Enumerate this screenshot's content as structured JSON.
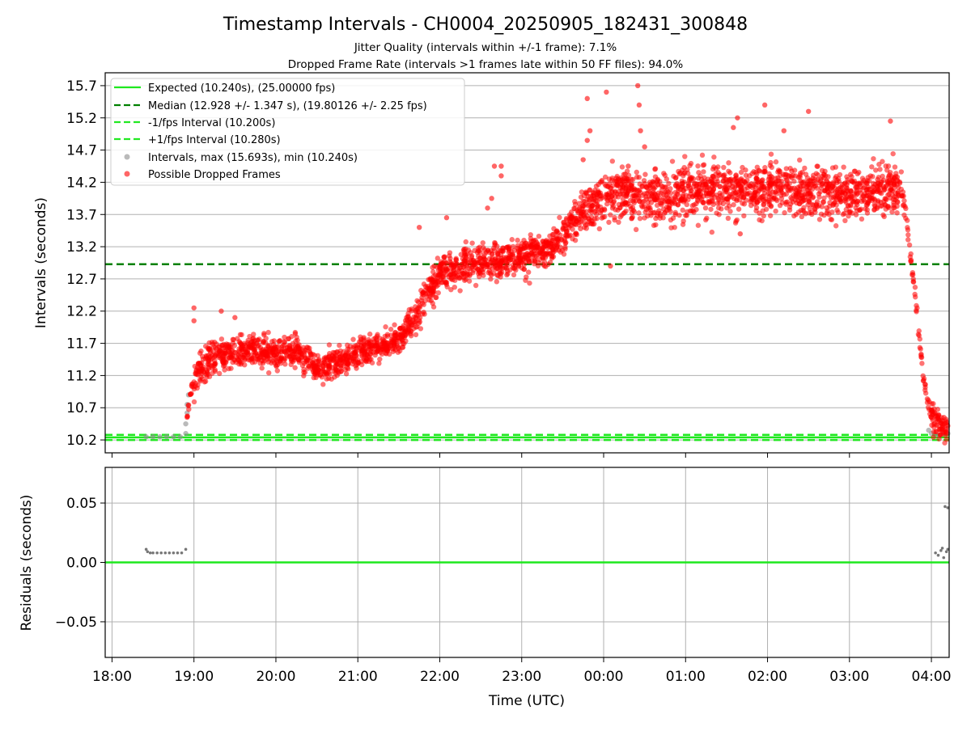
{
  "figure": {
    "title": "Timestamp Intervals - CH0004_20250905_182431_300848",
    "subtitle_jitter": "Jitter Quality (intervals within +/-1 frame): 7.1%",
    "subtitle_dropped": "Dropped Frame Rate (intervals >1 frames late within 50 FF files): 94.0%"
  },
  "colors": {
    "expected": "#1ee81e",
    "median": "#008000",
    "fps_band": "#22e822",
    "interval_gray": "#8c8c8c",
    "dropped_red": "#ff0000",
    "grid": "#b0b0b0"
  },
  "chart_data": [
    {
      "type": "scatter",
      "panel": "top",
      "title": "",
      "xlabel": "",
      "ylabel": "Intervals (seconds)",
      "xlim": [
        "17:55",
        "04:13"
      ],
      "ylim": [
        10.0,
        15.9
      ],
      "x_ticks": [
        "18:00",
        "19:00",
        "20:00",
        "21:00",
        "22:00",
        "23:00",
        "00:00",
        "01:00",
        "02:00",
        "03:00",
        "04:00"
      ],
      "y_ticks": [
        10.2,
        10.7,
        11.2,
        11.7,
        12.2,
        12.7,
        13.2,
        13.7,
        14.2,
        14.7,
        15.2,
        15.7
      ],
      "grid": true,
      "legend_position": "top-left",
      "reference_lines": [
        {
          "name": "Expected (10.240s), (25.00000 fps)",
          "y": 10.24,
          "style": "solid",
          "color": "#1ee81e"
        },
        {
          "name": "Median (12.928 +/- 1.347 s), (19.80126 +/- 2.25 fps)",
          "y": 12.928,
          "style": "dashed",
          "color": "#008000"
        },
        {
          "name": "-1/fps Interval (10.200s)",
          "y": 10.2,
          "style": "dashed",
          "color": "#22e822"
        },
        {
          "name": "+1/fps Interval (10.280s)",
          "y": 10.28,
          "style": "dashed",
          "color": "#22e822"
        }
      ],
      "series": [
        {
          "name": "Intervals, max (15.693s), min (10.240s)",
          "marker": "gray dot",
          "points": [
            [
              "18:25",
              10.25
            ],
            [
              "18:30",
              10.25
            ],
            [
              "18:35",
              10.25
            ],
            [
              "18:40",
              10.25
            ],
            [
              "18:45",
              10.25
            ],
            [
              "18:50",
              10.25
            ],
            [
              "18:54",
              10.3
            ],
            [
              "18:54",
              10.45
            ],
            [
              "18:55",
              10.62
            ],
            [
              "18:55",
              10.75
            ],
            [
              "18:56",
              10.9
            ],
            [
              "03:58",
              10.35
            ],
            [
              "04:00",
              10.3
            ],
            [
              "04:03",
              10.28
            ],
            [
              "04:06",
              10.27
            ],
            [
              "04:09",
              10.3
            ],
            [
              "04:12",
              10.3
            ]
          ]
        },
        {
          "name": "Possible Dropped Frames",
          "marker": "red dot",
          "trend": [
            [
              "18:55",
              10.55
            ],
            [
              "18:58",
              10.95
            ],
            [
              "19:00",
              11.1
            ],
            [
              "19:05",
              11.3
            ],
            [
              "19:15",
              11.5
            ],
            [
              "19:30",
              11.55
            ],
            [
              "19:45",
              11.6
            ],
            [
              "20:00",
              11.55
            ],
            [
              "20:15",
              11.6
            ],
            [
              "20:30",
              11.3
            ],
            [
              "20:45",
              11.4
            ],
            [
              "21:00",
              11.55
            ],
            [
              "21:15",
              11.65
            ],
            [
              "21:30",
              11.75
            ],
            [
              "21:45",
              12.2
            ],
            [
              "22:00",
              12.8
            ],
            [
              "22:15",
              12.9
            ],
            [
              "22:30",
              12.95
            ],
            [
              "22:45",
              13.0
            ],
            [
              "23:00",
              13.05
            ],
            [
              "23:15",
              13.15
            ],
            [
              "23:30",
              13.35
            ],
            [
              "23:45",
              13.75
            ],
            [
              "00:00",
              14.0
            ],
            [
              "00:15",
              14.05
            ],
            [
              "00:30",
              13.95
            ],
            [
              "00:45",
              13.95
            ],
            [
              "01:00",
              14.05
            ],
            [
              "01:15",
              14.05
            ],
            [
              "01:30",
              14.1
            ],
            [
              "01:45",
              14.1
            ],
            [
              "02:00",
              14.1
            ],
            [
              "02:15",
              14.1
            ],
            [
              "02:30",
              14.05
            ],
            [
              "02:45",
              14.05
            ],
            [
              "03:00",
              14.05
            ],
            [
              "03:15",
              14.05
            ],
            [
              "03:30",
              14.1
            ],
            [
              "03:38",
              14.1
            ],
            [
              "03:42",
              13.6
            ],
            [
              "03:45",
              13.0
            ],
            [
              "03:48",
              12.5
            ],
            [
              "03:51",
              11.8
            ],
            [
              "03:54",
              11.2
            ],
            [
              "03:57",
              10.8
            ],
            [
              "04:00",
              10.6
            ],
            [
              "04:05",
              10.45
            ],
            [
              "04:12",
              10.35
            ]
          ],
          "outliers": [
            [
              "19:00",
              12.25
            ],
            [
              "19:00",
              12.05
            ],
            [
              "19:20",
              12.2
            ],
            [
              "19:30",
              12.1
            ],
            [
              "22:40",
              14.45
            ],
            [
              "22:45",
              14.45
            ],
            [
              "22:35",
              13.8
            ],
            [
              "22:38",
              13.95
            ],
            [
              "23:45",
              14.55
            ],
            [
              "23:48",
              14.85
            ],
            [
              "23:50",
              15.0
            ],
            [
              "23:48",
              15.5
            ],
            [
              "00:02",
              15.6
            ],
            [
              "00:25",
              15.7
            ],
            [
              "00:26",
              15.4
            ],
            [
              "00:27",
              15.0
            ],
            [
              "00:30",
              14.75
            ],
            [
              "01:35",
              15.05
            ],
            [
              "01:38",
              15.2
            ],
            [
              "01:58",
              15.4
            ],
            [
              "02:30",
              15.3
            ],
            [
              "03:30",
              15.15
            ],
            [
              "02:12",
              15.0
            ],
            [
              "00:18",
              14.45
            ],
            [
              "01:40",
              13.4
            ],
            [
              "00:05",
              12.9
            ],
            [
              "21:45",
              13.5
            ],
            [
              "22:05",
              13.65
            ],
            [
              "22:45",
              14.3
            ],
            [
              "23:10",
              13.3
            ]
          ]
        }
      ]
    },
    {
      "type": "scatter",
      "panel": "bottom",
      "title": "",
      "xlabel": "Time (UTC)",
      "ylabel": "Residuals (seconds)",
      "xlim": [
        "17:55",
        "04:13"
      ],
      "ylim": [
        -0.08,
        0.08
      ],
      "x_ticks": [
        "18:00",
        "19:00",
        "20:00",
        "21:00",
        "22:00",
        "23:00",
        "00:00",
        "01:00",
        "02:00",
        "03:00",
        "04:00"
      ],
      "y_ticks": [
        0.05,
        0.0,
        -0.05
      ],
      "y_tick_labels": [
        "0.05",
        "0.00",
        "−0.05"
      ],
      "grid": true,
      "reference_lines": [
        {
          "name": "",
          "y": 0.0,
          "style": "solid",
          "color": "#1ee81e"
        }
      ],
      "series": [
        {
          "name": "",
          "marker": "gray dot",
          "points": [
            [
              "18:25",
              0.011
            ],
            [
              "18:26",
              0.009
            ],
            [
              "18:28",
              0.008
            ],
            [
              "18:30",
              0.008
            ],
            [
              "18:33",
              0.008
            ],
            [
              "18:36",
              0.008
            ],
            [
              "18:39",
              0.008
            ],
            [
              "18:42",
              0.008
            ],
            [
              "18:45",
              0.008
            ],
            [
              "18:48",
              0.008
            ],
            [
              "18:51",
              0.008
            ],
            [
              "18:54",
              0.011
            ],
            [
              "04:03",
              0.008
            ],
            [
              "04:05",
              0.006
            ],
            [
              "04:07",
              0.01
            ],
            [
              "04:08",
              0.012
            ],
            [
              "04:09",
              0.004
            ],
            [
              "04:10",
              0.047
            ],
            [
              "04:11",
              0.009
            ],
            [
              "04:12",
              0.046
            ],
            [
              "04:12",
              0.011
            ]
          ]
        }
      ]
    }
  ]
}
